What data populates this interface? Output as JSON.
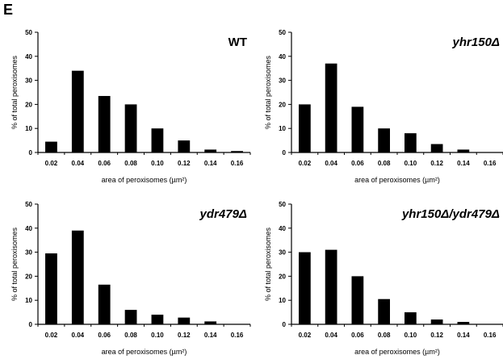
{
  "figure": {
    "panel_label": "E"
  },
  "chart_data": [
    {
      "type": "bar",
      "title": "WT",
      "title_italic": false,
      "xlabel": "area of peroxisomes (µm²)",
      "ylabel": "% of total peroxisomes",
      "categories": [
        "0.02",
        "0.04",
        "0.06",
        "0.08",
        "0.10",
        "0.12",
        "0.14",
        "0.16"
      ],
      "values": [
        4.5,
        34,
        23.5,
        20,
        10,
        5,
        1.2,
        0.6
      ],
      "ylim": [
        0,
        50
      ],
      "yticks": [
        "0",
        "10",
        "20",
        "30",
        "40",
        "50"
      ],
      "grid": false,
      "bar_color": "#000000"
    },
    {
      "type": "bar",
      "title": "yhr150Δ",
      "title_italic": true,
      "xlabel": "area of peroxisomes (µm²)",
      "ylabel": "% of total peroxisomes",
      "categories": [
        "0.02",
        "0.04",
        "0.06",
        "0.08",
        "0.10",
        "0.12",
        "0.14",
        "0.16"
      ],
      "values": [
        20,
        37,
        19,
        10,
        8,
        3.5,
        1.2,
        0
      ],
      "ylim": [
        0,
        50
      ],
      "yticks": [
        "0",
        "10",
        "20",
        "30",
        "40",
        "50"
      ],
      "grid": false,
      "bar_color": "#000000"
    },
    {
      "type": "bar",
      "title": "ydr479Δ",
      "title_italic": true,
      "xlabel": "area of peroxisomes (µm²)",
      "ylabel": "% of total peroxisomes",
      "categories": [
        "0.02",
        "0.04",
        "0.06",
        "0.08",
        "0.10",
        "0.12",
        "0.14",
        "0.16"
      ],
      "values": [
        29.5,
        39,
        16.5,
        6,
        4,
        2.8,
        1.2,
        0
      ],
      "ylim": [
        0,
        50
      ],
      "yticks": [
        "0",
        "10",
        "20",
        "30",
        "40",
        "50"
      ],
      "grid": false,
      "bar_color": "#000000"
    },
    {
      "type": "bar",
      "title": "yhr150Δ/ydr479Δ",
      "title_italic": true,
      "xlabel": "area of peroxisomes (µm²)",
      "ylabel": "% of total peroxisomes",
      "categories": [
        "0.02",
        "0.04",
        "0.06",
        "0.08",
        "0.10",
        "0.12",
        "0.14",
        "0.16"
      ],
      "values": [
        30,
        31,
        20,
        10.5,
        5,
        2,
        1,
        0
      ],
      "ylim": [
        0,
        50
      ],
      "yticks": [
        "0",
        "10",
        "20",
        "30",
        "40",
        "50"
      ],
      "grid": false,
      "bar_color": "#000000"
    }
  ]
}
